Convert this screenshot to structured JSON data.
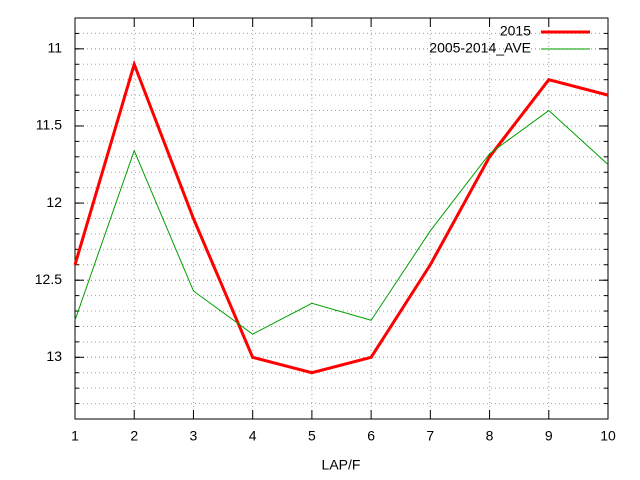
{
  "chart_data": {
    "type": "line",
    "x_label": "LAP/F",
    "x": [
      1,
      2,
      3,
      4,
      5,
      6,
      7,
      8,
      9,
      10
    ],
    "series": [
      {
        "name": "2015",
        "color": "#ff0000",
        "values": [
          12.4,
          11.1,
          12.1,
          13.0,
          13.1,
          13.0,
          12.4,
          11.7,
          11.2,
          11.3
        ]
      },
      {
        "name": "2005-2014_AVE",
        "color": "#00a000",
        "values": [
          12.76,
          11.66,
          12.57,
          12.85,
          12.65,
          12.76,
          12.18,
          11.68,
          11.4,
          11.75
        ]
      }
    ],
    "xlim": [
      1,
      10
    ],
    "xticks": [
      1,
      2,
      3,
      4,
      5,
      6,
      7,
      8,
      9,
      10
    ],
    "ylim": [
      13.4,
      10.8
    ],
    "yticks": [
      11,
      11.5,
      12,
      12.5,
      13
    ],
    "y_minor_subdivisions": 5,
    "grid": true,
    "legend_position": "top-right"
  }
}
